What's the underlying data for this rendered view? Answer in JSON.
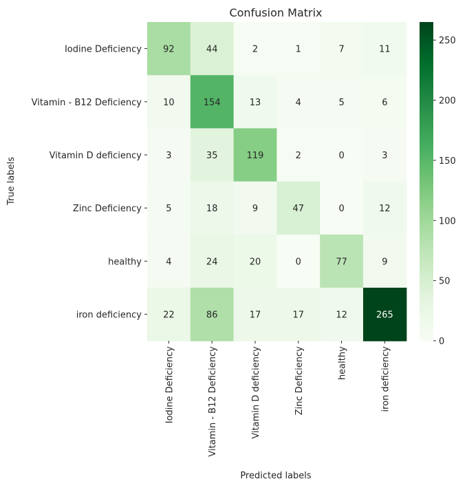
{
  "chart_data": {
    "type": "heatmap",
    "title": "Confusion Matrix",
    "xlabel": "Predicted labels",
    "ylabel": "True labels",
    "x_categories": [
      "Iodine Deficiency",
      "Vitamin - B12  Deficiency",
      "Vitamin D deficiency",
      "Zinc Deficiency",
      "healthy",
      "iron deficiency"
    ],
    "y_categories": [
      "Iodine Deficiency",
      "Vitamin - B12  Deficiency",
      "Vitamin D deficiency",
      "Zinc Deficiency",
      "healthy",
      "iron deficiency"
    ],
    "values": [
      [
        92,
        44,
        2,
        1,
        7,
        11
      ],
      [
        10,
        154,
        13,
        4,
        5,
        6
      ],
      [
        3,
        35,
        119,
        2,
        0,
        3
      ],
      [
        5,
        18,
        9,
        47,
        0,
        12
      ],
      [
        4,
        24,
        20,
        0,
        77,
        9
      ],
      [
        22,
        86,
        17,
        17,
        12,
        265
      ]
    ],
    "colorbar": {
      "min": 0,
      "max": 265,
      "ticks": [
        0,
        50,
        100,
        150,
        200,
        250
      ],
      "colormap": "Greens"
    },
    "annotations": true
  }
}
